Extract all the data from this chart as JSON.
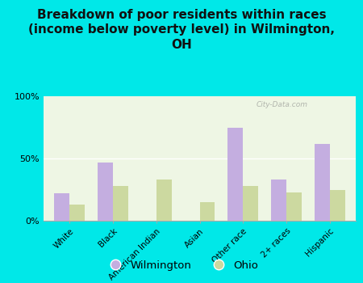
{
  "title": "Breakdown of poor residents within races\n(income below poverty level) in Wilmington,\nOH",
  "categories": [
    "White",
    "Black",
    "American Indian",
    "Asian",
    "Other race",
    "2+ races",
    "Hispanic"
  ],
  "wilmington": [
    22,
    47,
    0,
    0,
    75,
    33,
    62
  ],
  "ohio": [
    13,
    28,
    33,
    15,
    28,
    23,
    25
  ],
  "wilmington_color": "#c4aee0",
  "ohio_color": "#ccd9a0",
  "bg_outer": "#00e8e8",
  "bg_plot": "#eef6e4",
  "title_fontsize": 11,
  "bar_width": 0.35,
  "ylim": [
    0,
    100
  ],
  "ytick_labels": [
    "0%",
    "50%",
    "100%"
  ],
  "legend_labels": [
    "Wilmington",
    "Ohio"
  ],
  "watermark": "City-Data.com"
}
